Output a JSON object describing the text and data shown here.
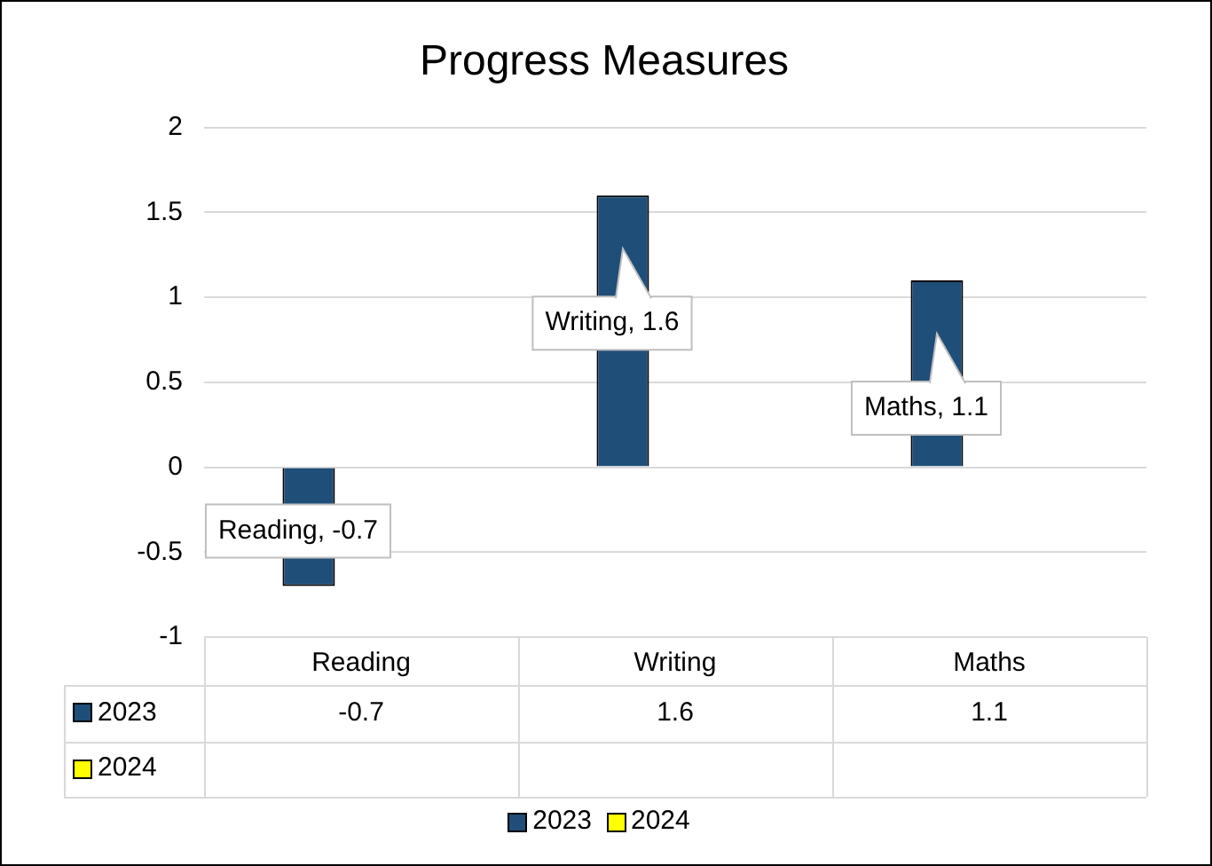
{
  "chart_data": {
    "type": "bar",
    "title": "Progress Measures",
    "categories": [
      "Reading",
      "Writing",
      "Maths"
    ],
    "series": [
      {
        "name": "2023",
        "color": "#1f4e79",
        "values": [
          -0.7,
          1.6,
          1.1
        ]
      },
      {
        "name": "2024",
        "color": "#ffff00",
        "values": [
          null,
          null,
          null
        ]
      }
    ],
    "annotations": [
      "Reading, -0.7",
      "Writing, 1.6",
      "Maths, 1.1"
    ],
    "ylim": [
      -1,
      2
    ],
    "yticks": [
      -1,
      -0.5,
      0,
      0.5,
      1,
      1.5,
      2
    ],
    "grid": "y",
    "legend": "bottom",
    "data_labels": true
  }
}
